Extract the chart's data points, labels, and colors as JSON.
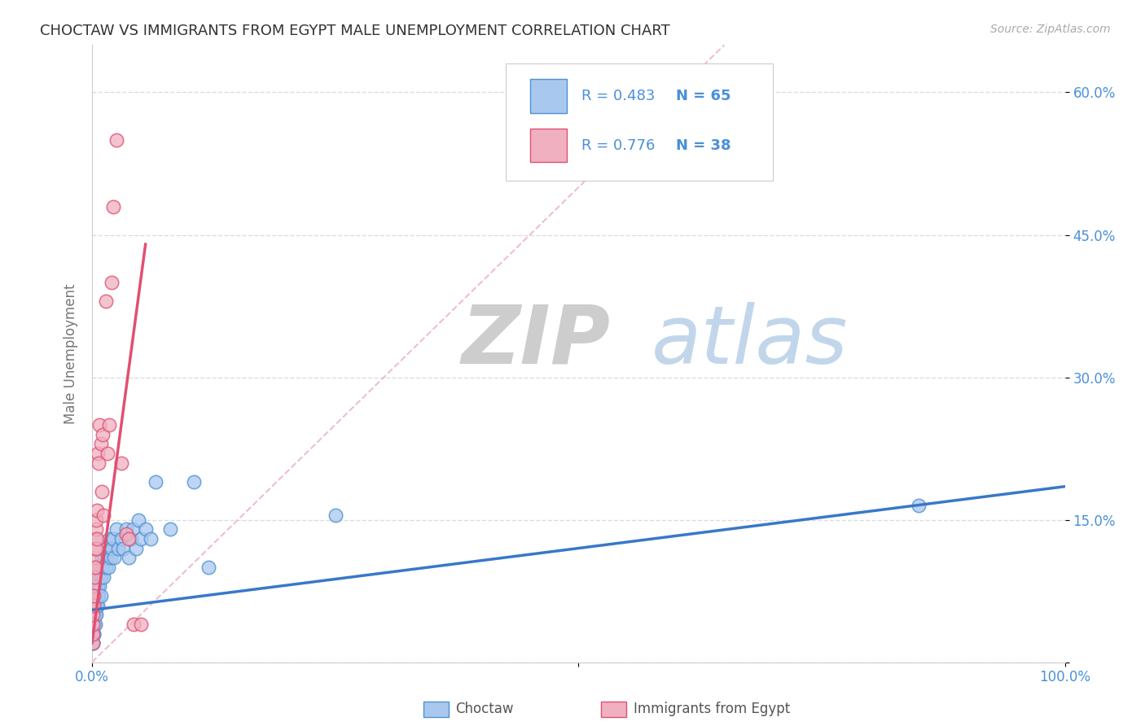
{
  "title": "CHOCTAW VS IMMIGRANTS FROM EGYPT MALE UNEMPLOYMENT CORRELATION CHART",
  "source": "Source: ZipAtlas.com",
  "ylabel": "Male Unemployment",
  "r1": 0.483,
  "n1": 65,
  "r2": 0.776,
  "n2": 38,
  "color_blue_fill": "#a8c8f0",
  "color_blue_edge": "#5090d0",
  "color_pink_fill": "#f0b0c0",
  "color_pink_edge": "#e05070",
  "color_line_blue": "#3878c8",
  "color_line_pink": "#e05070",
  "color_diag": "#e8b0c0",
  "color_title": "#333333",
  "color_source": "#aaaaaa",
  "color_axis_text": "#4a90d9",
  "color_ylabel": "#777777",
  "watermark_zip_color": "#c8c8c8",
  "watermark_atlas_color": "#b0c8e8",
  "grid_color": "#dddddd",
  "background": "#ffffff",
  "xlim": [
    0.0,
    1.0
  ],
  "ylim": [
    0.0,
    0.65
  ],
  "blue_line_x0": 0.0,
  "blue_line_y0": 0.055,
  "blue_line_x1": 1.0,
  "blue_line_y1": 0.185,
  "pink_line_x0": 0.0,
  "pink_line_y0": 0.02,
  "pink_line_x1": 0.055,
  "pink_line_y1": 0.44,
  "diag_line_x0": 0.0,
  "diag_line_y0": 0.0,
  "diag_line_x1": 0.65,
  "diag_line_y1": 0.65,
  "choctaw_x": [
    0.0008,
    0.001,
    0.0012,
    0.0013,
    0.0015,
    0.0016,
    0.0017,
    0.0018,
    0.002,
    0.002,
    0.0022,
    0.0023,
    0.0025,
    0.0026,
    0.003,
    0.003,
    0.0032,
    0.0035,
    0.004,
    0.004,
    0.0042,
    0.0045,
    0.005,
    0.005,
    0.0055,
    0.006,
    0.006,
    0.007,
    0.007,
    0.008,
    0.008,
    0.009,
    0.009,
    0.01,
    0.011,
    0.012,
    0.013,
    0.014,
    0.015,
    0.016,
    0.017,
    0.018,
    0.019,
    0.02,
    0.022,
    0.023,
    0.025,
    0.027,
    0.03,
    0.032,
    0.035,
    0.038,
    0.04,
    0.042,
    0.045,
    0.048,
    0.05,
    0.055,
    0.06,
    0.065,
    0.08,
    0.105,
    0.12,
    0.25,
    0.85
  ],
  "choctaw_y": [
    0.02,
    0.03,
    0.04,
    0.02,
    0.03,
    0.05,
    0.04,
    0.06,
    0.03,
    0.05,
    0.06,
    0.04,
    0.07,
    0.05,
    0.06,
    0.04,
    0.07,
    0.05,
    0.06,
    0.08,
    0.07,
    0.05,
    0.08,
    0.06,
    0.07,
    0.08,
    0.06,
    0.09,
    0.07,
    0.08,
    0.1,
    0.09,
    0.07,
    0.11,
    0.1,
    0.09,
    0.11,
    0.1,
    0.12,
    0.11,
    0.1,
    0.13,
    0.11,
    0.12,
    0.13,
    0.11,
    0.14,
    0.12,
    0.13,
    0.12,
    0.14,
    0.11,
    0.13,
    0.14,
    0.12,
    0.15,
    0.13,
    0.14,
    0.13,
    0.19,
    0.14,
    0.19,
    0.1,
    0.155,
    0.165
  ],
  "egypt_x": [
    0.0005,
    0.0008,
    0.001,
    0.001,
    0.0012,
    0.0013,
    0.0015,
    0.0016,
    0.002,
    0.002,
    0.0022,
    0.0025,
    0.003,
    0.003,
    0.0035,
    0.004,
    0.004,
    0.0045,
    0.005,
    0.005,
    0.006,
    0.007,
    0.008,
    0.009,
    0.01,
    0.011,
    0.012,
    0.014,
    0.016,
    0.018,
    0.02,
    0.022,
    0.025,
    0.03,
    0.035,
    0.038,
    0.043,
    0.05
  ],
  "egypt_y": [
    0.02,
    0.03,
    0.04,
    0.06,
    0.05,
    0.07,
    0.06,
    0.08,
    0.07,
    0.1,
    0.09,
    0.11,
    0.1,
    0.13,
    0.12,
    0.12,
    0.14,
    0.15,
    0.13,
    0.16,
    0.22,
    0.21,
    0.25,
    0.23,
    0.18,
    0.24,
    0.155,
    0.38,
    0.22,
    0.25,
    0.4,
    0.48,
    0.55,
    0.21,
    0.135,
    0.13,
    0.04,
    0.04
  ]
}
